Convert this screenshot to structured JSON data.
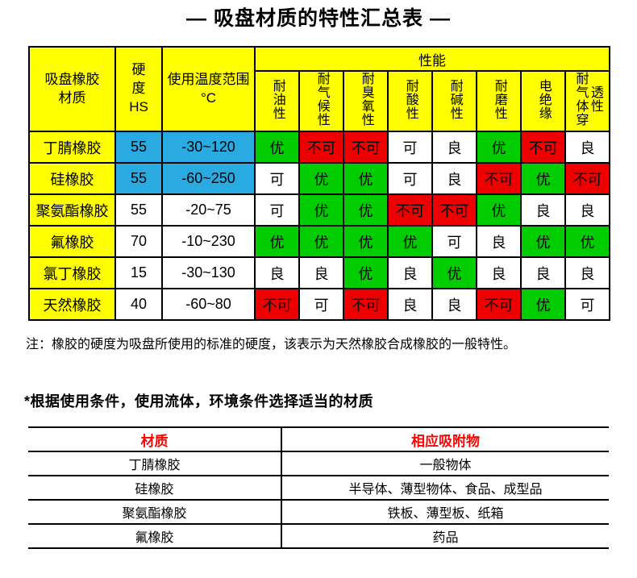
{
  "title": "— 吸盘材质的特性汇总表 —",
  "colors": {
    "header_yellow": "#ffff00",
    "cell_blue": "#29abe2",
    "grade_green": "#00cc00",
    "grade_red": "#ee0000",
    "map_header_red": "#ff0000"
  },
  "main_table": {
    "header": {
      "material": "吸盘橡胶材质",
      "hardness": "硬度HS",
      "temp_range": "使用温度范围 °C",
      "performance": "性能",
      "perf_cols": [
        "耐油性",
        "耐气候性",
        "耐臭氧性",
        "耐酸性",
        "耐碱性",
        "耐磨性",
        "电绝缘",
        "耐气体穿透性"
      ]
    },
    "rows": [
      {
        "material": "丁腈橡胶",
        "hardness": "55",
        "hs_color": "blue",
        "temp_range": "-30~120",
        "temp_color": "blue",
        "performance": [
          {
            "grade": "优",
            "color": "green"
          },
          {
            "grade": "不可",
            "color": "red"
          },
          {
            "grade": "不可",
            "color": "red"
          },
          {
            "grade": "可",
            "color": "white"
          },
          {
            "grade": "良",
            "color": "white"
          },
          {
            "grade": "优",
            "color": "green"
          },
          {
            "grade": "不可",
            "color": "red"
          },
          {
            "grade": "良",
            "color": "white"
          }
        ]
      },
      {
        "material": "硅橡胶",
        "hardness": "55",
        "hs_color": "blue",
        "temp_range": "-60~250",
        "temp_color": "blue",
        "performance": [
          {
            "grade": "可",
            "color": "white"
          },
          {
            "grade": "优",
            "color": "green"
          },
          {
            "grade": "优",
            "color": "green"
          },
          {
            "grade": "可",
            "color": "white"
          },
          {
            "grade": "良",
            "color": "white"
          },
          {
            "grade": "不可",
            "color": "red"
          },
          {
            "grade": "优",
            "color": "green"
          },
          {
            "grade": "不可",
            "color": "red"
          }
        ]
      },
      {
        "material": "聚氨酯橡胶",
        "hardness": "55",
        "hs_color": "white",
        "temp_range": "-20~75",
        "temp_color": "white",
        "performance": [
          {
            "grade": "可",
            "color": "white"
          },
          {
            "grade": "优",
            "color": "green"
          },
          {
            "grade": "优",
            "color": "green"
          },
          {
            "grade": "不可",
            "color": "red"
          },
          {
            "grade": "不可",
            "color": "red"
          },
          {
            "grade": "优",
            "color": "green"
          },
          {
            "grade": "良",
            "color": "white"
          },
          {
            "grade": "良",
            "color": "white"
          }
        ]
      },
      {
        "material": "氟橡胶",
        "hardness": "70",
        "hs_color": "white",
        "temp_range": "-10~230",
        "temp_color": "white",
        "performance": [
          {
            "grade": "优",
            "color": "green"
          },
          {
            "grade": "优",
            "color": "green"
          },
          {
            "grade": "优",
            "color": "green"
          },
          {
            "grade": "优",
            "color": "green"
          },
          {
            "grade": "可",
            "color": "white"
          },
          {
            "grade": "良",
            "color": "white"
          },
          {
            "grade": "优",
            "color": "green"
          },
          {
            "grade": "优",
            "color": "green"
          }
        ]
      },
      {
        "material": "氯丁橡胶",
        "hardness": "15",
        "hs_color": "white",
        "temp_range": "-30~130",
        "temp_color": "white",
        "performance": [
          {
            "grade": "良",
            "color": "white"
          },
          {
            "grade": "良",
            "color": "white"
          },
          {
            "grade": "优",
            "color": "green"
          },
          {
            "grade": "良",
            "color": "white"
          },
          {
            "grade": "优",
            "color": "green"
          },
          {
            "grade": "良",
            "color": "white"
          },
          {
            "grade": "良",
            "color": "white"
          },
          {
            "grade": "良",
            "color": "white"
          }
        ]
      },
      {
        "material": "天然橡胶",
        "hardness": "40",
        "hs_color": "white",
        "temp_range": "-60~80",
        "temp_color": "white",
        "performance": [
          {
            "grade": "不可",
            "color": "red"
          },
          {
            "grade": "可",
            "color": "white"
          },
          {
            "grade": "不可",
            "color": "red"
          },
          {
            "grade": "良",
            "color": "white"
          },
          {
            "grade": "良",
            "color": "white"
          },
          {
            "grade": "不可",
            "color": "red"
          },
          {
            "grade": "优",
            "color": "green"
          },
          {
            "grade": "可",
            "color": "white"
          }
        ]
      }
    ]
  },
  "note": "注：橡胶的硬度为吸盘所使用的标准的硬度，该表示为天然橡胶合成橡胶的一般特性。",
  "select_heading": "*根据使用条件，使用流体，环境条件选择适当的材质",
  "map_table": {
    "headers": [
      "材质",
      "相应吸附物"
    ],
    "rows": [
      {
        "material": "丁腈橡胶",
        "objects": "一般物体"
      },
      {
        "material": "硅橡胶",
        "objects": "半导体、薄型物体、食品、成型品"
      },
      {
        "material": "聚氨酯橡胶",
        "objects": "铁板、薄型板、纸箱"
      },
      {
        "material": "氟橡胶",
        "objects": "药品"
      }
    ]
  }
}
